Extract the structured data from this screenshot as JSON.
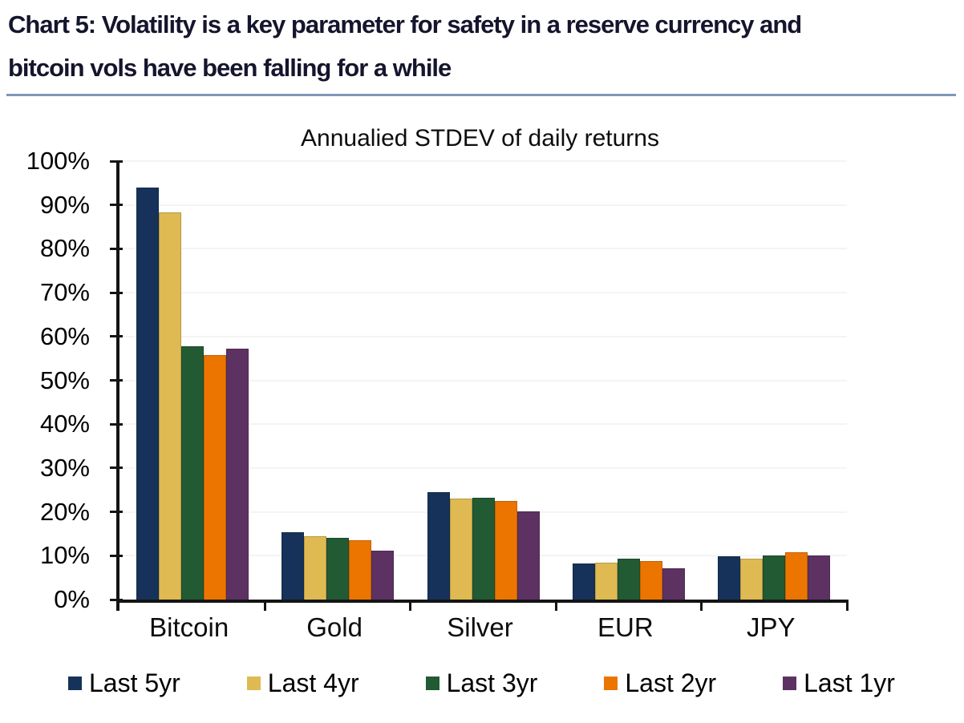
{
  "header": {
    "title_line1": "Chart 5: Volatility is a key parameter for safety in a reserve currency and",
    "title_line2": "bitcoin vols have been falling for a while"
  },
  "chart_data": {
    "type": "bar",
    "title": "Annualied STDEV of daily returns",
    "categories": [
      "Bitcoin",
      "Gold",
      "Silver",
      "EUR",
      "JPY"
    ],
    "series": [
      {
        "name": "Last 5yr",
        "color": "#16325a",
        "values": [
          94.0,
          15.4,
          24.5,
          8.3,
          9.8
        ]
      },
      {
        "name": "Last 4yr",
        "color": "#dfba52",
        "values": [
          88.3,
          14.5,
          23.0,
          8.5,
          9.3
        ]
      },
      {
        "name": "Last 3yr",
        "color": "#215a33",
        "values": [
          57.7,
          14.1,
          23.2,
          9.4,
          10.1
        ]
      },
      {
        "name": "Last 2yr",
        "color": "#ec7500",
        "values": [
          55.8,
          13.6,
          22.4,
          8.7,
          10.7
        ]
      },
      {
        "name": "Last 1yr",
        "color": "#5d3263",
        "values": [
          57.3,
          11.2,
          20.2,
          7.2,
          10.1
        ]
      }
    ],
    "y_axis": {
      "min": 0,
      "max": 100,
      "step": 10,
      "ticks": [
        "0%",
        "10%",
        "20%",
        "30%",
        "40%",
        "50%",
        "60%",
        "70%",
        "80%",
        "90%",
        "100%"
      ]
    },
    "grid": true,
    "legend_position": "bottom"
  },
  "colors": {
    "header_rule": "#7e96b8",
    "axis": "#141414",
    "gridline": "#f4f4f4",
    "title_text": "#15152d"
  }
}
